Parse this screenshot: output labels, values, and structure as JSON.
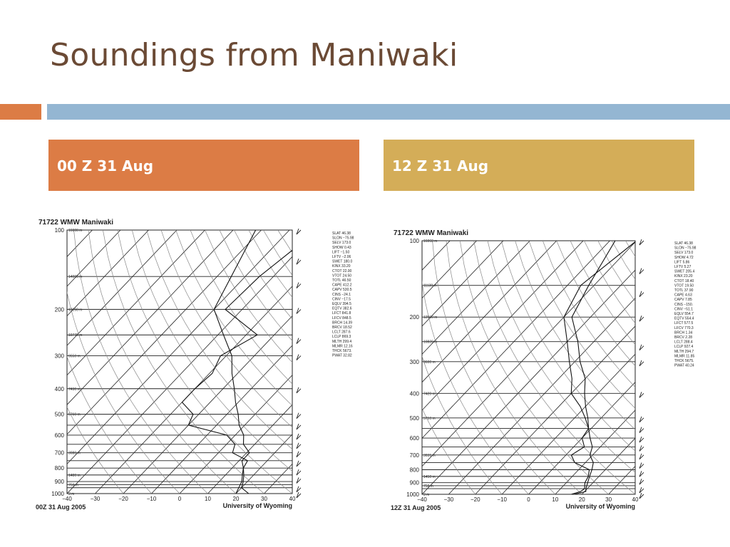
{
  "title": "Soundings from Maniwaki",
  "columns": [
    {
      "header": "00 Z 31 Aug",
      "chart": {
        "station": "71722 WMW Maniwaki",
        "footer_left": "00Z 31 Aug 2005",
        "footer_right": "University of Wyoming",
        "pressure_labels": [
          "100",
          "200",
          "300",
          "400",
          "500",
          "600",
          "700",
          "800",
          "900",
          "1000"
        ],
        "temp_labels": [
          "−40",
          "−30",
          "−20",
          "−10",
          "0",
          "10",
          "20",
          "30",
          "40"
        ],
        "height_labels": [
          "16000 m",
          "14000 m",
          "12260 m",
          "10770 m",
          "9550 m",
          "7430 m",
          "5760 m",
          "3080 m",
          "1480 m",
          "750 m",
          "3 m"
        ],
        "indices": [
          "SLAT  46.38",
          "SLON  −75.98",
          "SELV  173.0",
          "SHOW 0.43",
          "LIFT   −1.50",
          "LFTV  −2.06",
          "SWET  180.0",
          "KINX  33.20",
          "CTOT  22.00",
          "VTOT  24.50",
          "TOTL  46.50",
          "CAPE  412.2",
          "CAPV  530.5",
          "CINS  −24.1",
          "CINV  −17.5",
          "EQLV  394.5",
          "EQTV  382.6",
          "LFCT  841.8",
          "LFCV  848.5",
          "BRCH  14.39",
          "BRCV  18.52",
          "LCLT  287.6",
          "LCLP  869.3",
          "MLTH  299.4",
          "MLMR  12.16",
          "THCK  5673.",
          "PWAT  32.82"
        ],
        "temperature_profile": [
          [
            1000,
            24.5
          ],
          [
            950,
            20
          ],
          [
            900,
            18.5
          ],
          [
            850,
            16.5
          ],
          [
            800,
            14
          ],
          [
            750,
            11
          ],
          [
            700,
            11
          ],
          [
            650,
            6
          ],
          [
            600,
            3
          ],
          [
            550,
            -2
          ],
          [
            500,
            -6
          ],
          [
            450,
            -11
          ],
          [
            400,
            -16
          ],
          [
            350,
            -22
          ],
          [
            300,
            -28
          ],
          [
            250,
            -38
          ],
          [
            200,
            -50
          ],
          [
            150,
            -55
          ],
          [
            100,
            -62
          ]
        ],
        "dewpoint_profile": [
          [
            1000,
            20
          ],
          [
            950,
            19
          ],
          [
            900,
            18
          ],
          [
            850,
            16
          ],
          [
            800,
            14
          ],
          [
            750,
            13
          ],
          [
            700,
            5
          ],
          [
            650,
            3
          ],
          [
            600,
            -3
          ],
          [
            550,
            -20
          ],
          [
            500,
            -22
          ],
          [
            450,
            -30
          ],
          [
            400,
            -30
          ],
          [
            350,
            -29
          ],
          [
            300,
            -32
          ],
          [
            250,
            -26
          ],
          [
            200,
            -46
          ],
          [
            150,
            -45
          ],
          [
            100,
            -40
          ]
        ]
      }
    },
    {
      "header": "12 Z 31 Aug",
      "chart": {
        "station": "71722 WMW Maniwaki",
        "footer_left": "12Z 31 Aug 2005",
        "footer_right": "University of Wyoming",
        "pressure_labels": [
          "100",
          "200",
          "300",
          "400",
          "500",
          "600",
          "700",
          "800",
          "900",
          "1000"
        ],
        "temp_labels": [
          "−40",
          "−30",
          "−20",
          "−10",
          "0",
          "10",
          "20",
          "30",
          "40"
        ],
        "height_labels": [
          "16060 m",
          "11130 m",
          "12500 m",
          "10820 m",
          "9600 m",
          "7420 m",
          "5710 m",
          "3031 m",
          "1450 m",
          "758 m",
          "3 m"
        ],
        "indices": [
          "SLAT  46.38",
          "SLON  −75.98",
          "SELV  173.0",
          "SHOW 4.72",
          "LIFT   5.86",
          "LFTV  5.27",
          "SWET  205.4",
          "KINX  23.20",
          "CTOT  18.40",
          "VTOT  19.50",
          "TOTL  37.90",
          "CAPE  4.63",
          "CAPV  7.85",
          "CINS  −150.",
          "CINV  −51.1",
          "EQLV  554.7",
          "EQTV  554.4",
          "LFCT  577.5",
          "LFCV  770.3",
          "BRCH  1.34",
          "BRCV  2.28",
          "LCLT  288.4",
          "LCLP  927.4",
          "MLTH  294.7",
          "MLMR  11.85",
          "THCK  5675.",
          "PWAT  40.24"
        ],
        "temperature_profile": [
          [
            1000,
            17
          ],
          [
            975,
            20.5
          ],
          [
            950,
            19.5
          ],
          [
            900,
            18
          ],
          [
            850,
            16.5
          ],
          [
            800,
            15
          ],
          [
            750,
            13
          ],
          [
            700,
            9
          ],
          [
            650,
            7
          ],
          [
            600,
            3
          ],
          [
            550,
            -1
          ],
          [
            500,
            -5
          ],
          [
            450,
            -10
          ],
          [
            400,
            -15
          ],
          [
            350,
            -20
          ],
          [
            300,
            -28
          ],
          [
            250,
            -36
          ],
          [
            200,
            -47
          ],
          [
            150,
            -52
          ],
          [
            100,
            -58
          ]
        ],
        "dewpoint_profile": [
          [
            1000,
            16
          ],
          [
            975,
            18.5
          ],
          [
            950,
            19
          ],
          [
            900,
            17
          ],
          [
            850,
            16
          ],
          [
            800,
            14
          ],
          [
            750,
            6
          ],
          [
            700,
            2
          ],
          [
            650,
            4
          ],
          [
            600,
            0
          ],
          [
            550,
            -1
          ],
          [
            500,
            -6
          ],
          [
            450,
            -12
          ],
          [
            400,
            -20
          ],
          [
            350,
            -25
          ],
          [
            300,
            -32
          ],
          [
            250,
            -40
          ],
          [
            200,
            -50
          ],
          [
            150,
            -55
          ],
          [
            100,
            -50
          ]
        ]
      }
    }
  ],
  "colors": {
    "title": "#6b4a35",
    "orange": "#dc7c45",
    "gold": "#d4ad58",
    "blue_bar": "#94b6d2"
  }
}
